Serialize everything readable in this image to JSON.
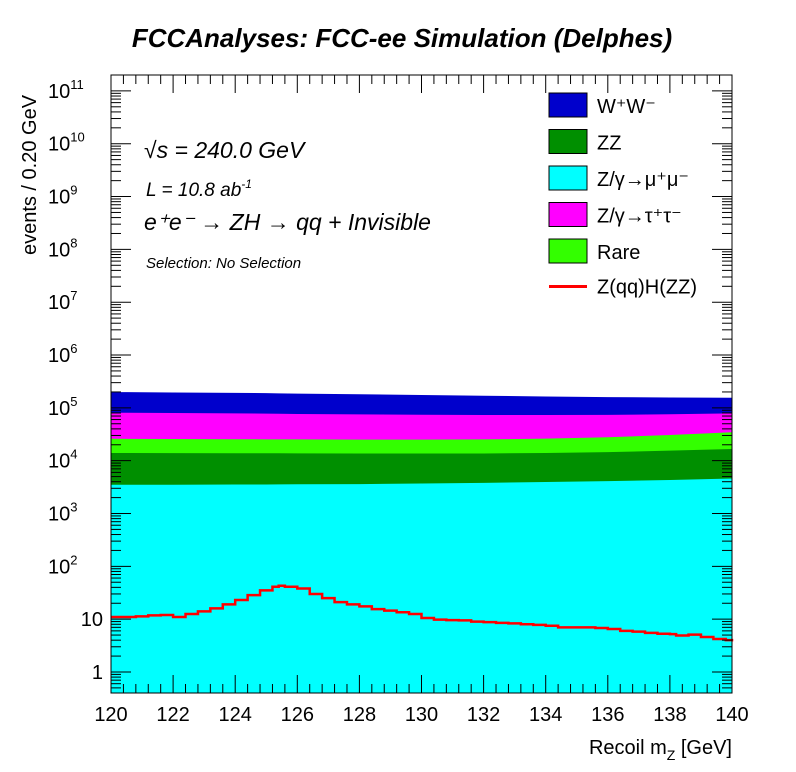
{
  "chart_data": {
    "type": "area",
    "title": "FCCAnalyses: FCC-ee Simulation (Delphes)",
    "xlabel_main": "Recoil m",
    "xlabel_sub": "Z",
    "xlabel_unit": " [GeV]",
    "ylabel": "events / 0.20 GeV",
    "xlim": [
      120,
      140
    ],
    "ylim": [
      0.4,
      200000000000.0
    ],
    "y_scale": "log",
    "grid": false,
    "legend_position": "top-right",
    "x_ticks": [
      "120",
      "122",
      "124",
      "126",
      "128",
      "130",
      "132",
      "134",
      "136",
      "138",
      "140"
    ],
    "y_ticks": [
      {
        "base": "1",
        "exp": ""
      },
      {
        "base": "10",
        "exp": ""
      },
      {
        "base": "10",
        "exp": "2"
      },
      {
        "base": "10",
        "exp": "3"
      },
      {
        "base": "10",
        "exp": "4"
      },
      {
        "base": "10",
        "exp": "5"
      },
      {
        "base": "10",
        "exp": "6"
      },
      {
        "base": "10",
        "exp": "7"
      },
      {
        "base": "10",
        "exp": "8"
      },
      {
        "base": "10",
        "exp": "9"
      },
      {
        "base": "10",
        "exp": "10"
      },
      {
        "base": "10",
        "exp": "11"
      }
    ],
    "annotations": {
      "energy": "√s = 240.0 GeV",
      "lumi_base": "L = 10.8 ab",
      "lumi_exp": "-1",
      "process": "e⁺e⁻ → ZH → qq + Invisible",
      "selection": "Selection: No Selection"
    },
    "x": [
      120,
      122,
      124,
      125,
      125.4,
      126,
      128,
      130,
      132,
      134,
      136,
      138,
      140
    ],
    "stack": [
      {
        "name": "Z/γ→μ⁺μ⁻",
        "color": "#00ffff",
        "values": [
          3500,
          3500,
          3550,
          3550,
          3560,
          3580,
          3600,
          3700,
          3800,
          3950,
          4100,
          4300,
          4600
        ]
      },
      {
        "name": "ZZ",
        "color": "#008f00",
        "values": [
          10500,
          10400,
          10300,
          10300,
          10300,
          10200,
          10100,
          10000,
          9900,
          10000,
          10400,
          11200,
          12000
        ]
      },
      {
        "name": "Rare",
        "color": "#33ff00",
        "values": [
          12000,
          11800,
          11600,
          11500,
          11500,
          11500,
          11400,
          11400,
          11600,
          12200,
          13200,
          15200,
          18000
        ]
      },
      {
        "name": "Z/γ→τ⁺τ⁻",
        "color": "#ff00ff",
        "values": [
          55000,
          54000,
          53000,
          52500,
          52000,
          51000,
          50000,
          49000,
          48000,
          47000,
          46000,
          45000,
          44000
        ]
      },
      {
        "name": "W⁺W⁻",
        "color": "#0000cc",
        "values": [
          118000,
          116000,
          114000,
          112000,
          111000,
          110000,
          106000,
          101000,
          96000,
          91000,
          86000,
          81000,
          77000
        ]
      }
    ],
    "signal": {
      "name": "Z(qq)H(ZZ)",
      "color": "#ff0000",
      "x": [
        120,
        120.4,
        120.8,
        121.2,
        121.6,
        122,
        122.4,
        122.8,
        123.2,
        123.6,
        124,
        124.4,
        124.8,
        125.2,
        125.4,
        125.6,
        126,
        126.4,
        126.8,
        127.2,
        127.6,
        128,
        128.4,
        128.8,
        129.2,
        129.6,
        130,
        130.4,
        130.8,
        131.2,
        131.6,
        132,
        132.4,
        132.8,
        133.2,
        133.6,
        134,
        134.4,
        134.8,
        135.2,
        135.6,
        136,
        136.4,
        136.8,
        137.2,
        137.6,
        138,
        138.2,
        138.6,
        139,
        139.4,
        139.8,
        140
      ],
      "values": [
        11,
        11,
        11.3,
        11.8,
        12,
        11,
        12.5,
        14,
        16,
        19,
        23,
        28.5,
        35,
        41,
        43,
        41,
        38,
        30,
        25,
        21,
        19,
        17.5,
        15.5,
        14.5,
        13.5,
        12.5,
        10.5,
        9.8,
        9.6,
        9.5,
        9,
        8.8,
        8.5,
        8.3,
        8,
        7.8,
        7.5,
        7,
        7,
        7,
        6.8,
        6.5,
        6,
        5.8,
        5.5,
        5.3,
        5.2,
        4.9,
        5.1,
        4.6,
        4.2,
        4,
        3.8
      ]
    }
  }
}
